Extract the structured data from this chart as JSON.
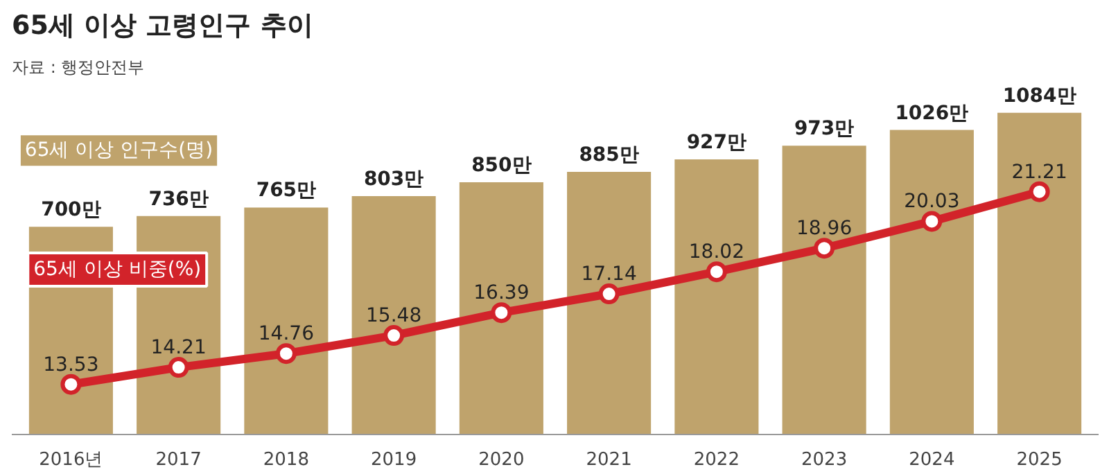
{
  "chart_data": {
    "type": "bar",
    "title": "65세 이상 고령인구 추이",
    "annotations": [
      "자료 : 행정안전부"
    ],
    "categories": [
      "2016년",
      "2017",
      "2018",
      "2019",
      "2020",
      "2021",
      "2022",
      "2023",
      "2024",
      "2025"
    ],
    "series": [
      {
        "name": "65세 이상 인구수(명)",
        "color": "#bfa36c",
        "values": [
          700,
          736,
          765,
          803,
          850,
          885,
          927,
          973,
          1026,
          1084
        ],
        "value_labels": [
          "700만",
          "736만",
          "765만",
          "803만",
          "850만",
          "885만",
          "927만",
          "973만",
          "1026만",
          "1084만"
        ]
      },
      {
        "name": "65세 이상 비중(%)",
        "type": "line",
        "axis": "y2",
        "color": "#d2232a",
        "marker": "circle",
        "values": [
          13.53,
          14.21,
          14.76,
          15.48,
          16.39,
          17.14,
          18.02,
          18.96,
          20.03,
          21.21
        ],
        "value_labels": [
          "13.53",
          "14.21",
          "14.76",
          "15.48",
          "16.39",
          "17.14",
          "18.02",
          "18.96",
          "20.03",
          "21.21"
        ]
      }
    ],
    "tick_labels": "x",
    "grid": false
  }
}
